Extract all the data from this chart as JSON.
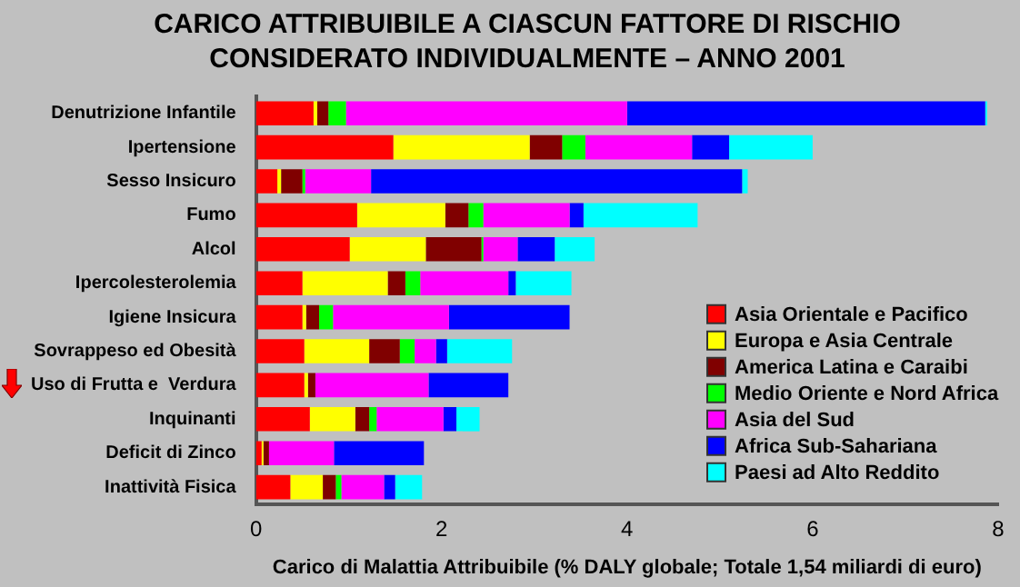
{
  "chart_data": {
    "type": "bar",
    "orientation": "horizontal",
    "stacked": true,
    "title": "CARICO ATTRIBUIBILE A CIASCUN FATTORE DI RISCHIO CONSIDERATO INDIVIDUALMENTE – ANNO 2001",
    "xlabel": "Carico di Malattia Attribuibile (% DALY globale; Totale 1,54 miliardi di euro)",
    "categories": [
      "Denutrizione Infantile",
      "Ipertensione",
      "Sesso Insicuro",
      "Fumo",
      "Alcol",
      "Ipercolesterolemia",
      "Igiene Insicura",
      "Sovrappeso ed Obesità",
      "Uso di Frutta e  Verdura",
      "Inquinanti",
      "Deficit di Zinco",
      "Inattività Fisica"
    ],
    "series": [
      {
        "name": "Asia Orientale e Pacifico",
        "color": "#ff0000",
        "values": [
          0.62,
          1.48,
          0.23,
          1.09,
          1.01,
          0.5,
          0.5,
          0.52,
          0.52,
          0.58,
          0.06,
          0.37
        ]
      },
      {
        "name": "Europa e Asia Centrale",
        "color": "#ffff00",
        "values": [
          0.04,
          1.47,
          0.04,
          0.95,
          0.82,
          0.92,
          0.04,
          0.7,
          0.04,
          0.49,
          0.02,
          0.35
        ]
      },
      {
        "name": "America Latina e Caraibi",
        "color": "#800000",
        "values": [
          0.12,
          0.35,
          0.23,
          0.25,
          0.6,
          0.19,
          0.14,
          0.33,
          0.08,
          0.15,
          0.06,
          0.14
        ]
      },
      {
        "name": "Medio Oriente e Nord Africa",
        "color": "#00ff00",
        "values": [
          0.19,
          0.25,
          0.03,
          0.16,
          0.02,
          0.16,
          0.15,
          0.16,
          0,
          0.08,
          0,
          0.06
        ]
      },
      {
        "name": "Asia del Sud",
        "color": "#ff00ff",
        "values": [
          3.03,
          1.15,
          0.71,
          0.93,
          0.37,
          0.95,
          1.25,
          0.23,
          1.22,
          0.72,
          0.7,
          0.46
        ]
      },
      {
        "name": "Africa Sub-Sahariana",
        "color": "#0000ff",
        "values": [
          3.86,
          0.4,
          4.0,
          0.15,
          0.4,
          0.08,
          1.3,
          0.12,
          0.86,
          0.14,
          0.97,
          0.12
        ]
      },
      {
        "name": "Paesi ad Alto Reddito",
        "color": "#00ffff",
        "values": [
          0.02,
          0.9,
          0.06,
          1.23,
          0.43,
          0.6,
          0,
          0.7,
          0,
          0.25,
          0,
          0.29
        ]
      }
    ],
    "xlim": [
      0,
      8
    ],
    "xticks": [
      0,
      2,
      4,
      6,
      8
    ],
    "grid": false,
    "legend": "bottom right"
  }
}
